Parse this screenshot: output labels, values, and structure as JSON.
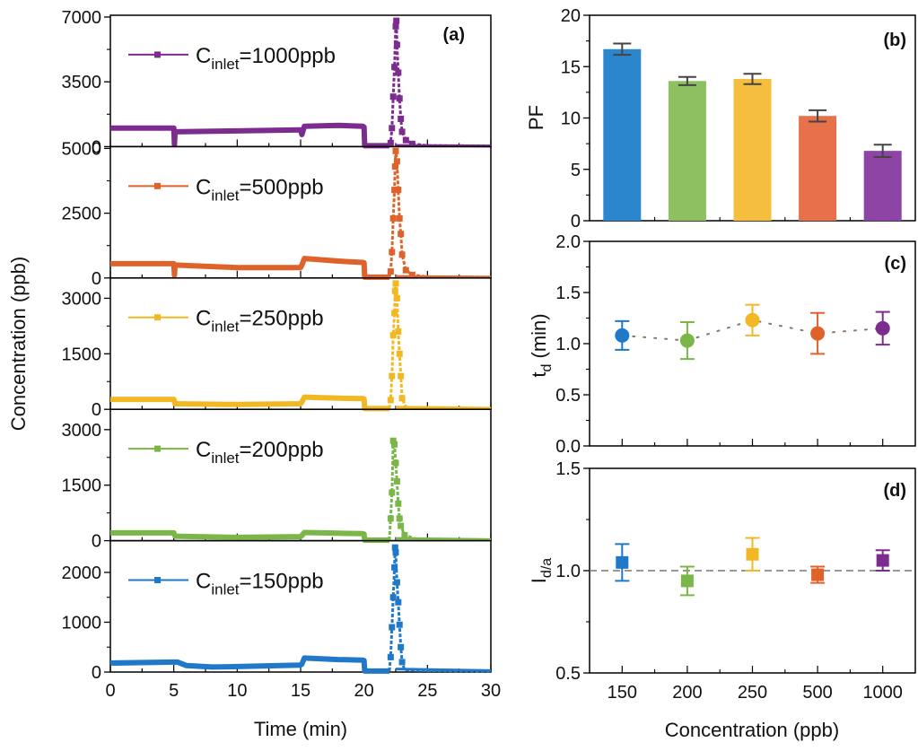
{
  "chart_data": [
    {
      "id": "a",
      "panel_tag": "(a)",
      "type": "line",
      "title": "",
      "xlabel": "Time (min)",
      "ylabel": "Concentration (ppb)",
      "xlim": [
        0,
        30
      ],
      "xticks": [
        0,
        5,
        10,
        15,
        20,
        25,
        30
      ],
      "grid": false,
      "subpanels": [
        {
          "name": "C_inlet=1000ppb",
          "legend": {
            "main": "C",
            "sub": "inlet",
            "rest": "=1000ppb"
          },
          "color": "#7B2C8E",
          "ylim": [
            0,
            7000
          ],
          "yticks": [
            0,
            3500,
            7000
          ],
          "baseline": [
            [
              0,
              1000
            ],
            [
              5,
              1000
            ],
            [
              5.05,
              100
            ],
            [
              5.1,
              800
            ],
            [
              10,
              850
            ],
            [
              15,
              900
            ],
            [
              15.1,
              650
            ],
            [
              15.3,
              1100
            ],
            [
              18,
              1150
            ],
            [
              19.9,
              1100
            ],
            [
              20,
              1050
            ],
            [
              20.05,
              50
            ],
            [
              22,
              50
            ]
          ],
          "peak": [
            [
              22,
              50
            ],
            [
              22.1,
              200
            ],
            [
              22.2,
              1000
            ],
            [
              22.3,
              2700
            ],
            [
              22.4,
              4300
            ],
            [
              22.5,
              6500
            ],
            [
              22.55,
              6800
            ],
            [
              22.6,
              5500
            ],
            [
              22.7,
              4000
            ],
            [
              22.8,
              2600
            ],
            [
              22.9,
              1500
            ],
            [
              23,
              800
            ],
            [
              23.3,
              350
            ],
            [
              23.8,
              150
            ],
            [
              25,
              60
            ],
            [
              30,
              40
            ]
          ]
        },
        {
          "name": "C_inlet=500ppb",
          "legend": {
            "main": "C",
            "sub": "inlet",
            "rest": "=500ppb"
          },
          "color": "#E0622B",
          "ylim": [
            0,
            5000
          ],
          "yticks": [
            0,
            2500,
            5000
          ],
          "baseline": [
            [
              0,
              550
            ],
            [
              5,
              550
            ],
            [
              5.05,
              100
            ],
            [
              5.1,
              500
            ],
            [
              10,
              400
            ],
            [
              15,
              400
            ],
            [
              15.1,
              500
            ],
            [
              15.3,
              750
            ],
            [
              18,
              650
            ],
            [
              19.9,
              600
            ],
            [
              20,
              580
            ],
            [
              20.05,
              30
            ],
            [
              22,
              30
            ]
          ],
          "peak": [
            [
              22,
              30
            ],
            [
              22.1,
              250
            ],
            [
              22.2,
              1000
            ],
            [
              22.3,
              2300
            ],
            [
              22.4,
              3400
            ],
            [
              22.45,
              4300
            ],
            [
              22.5,
              4900
            ],
            [
              22.6,
              4500
            ],
            [
              22.7,
              3400
            ],
            [
              22.8,
              2300
            ],
            [
              22.9,
              1700
            ],
            [
              23,
              900
            ],
            [
              23.3,
              300
            ],
            [
              23.8,
              120
            ],
            [
              25,
              40
            ],
            [
              30,
              30
            ]
          ]
        },
        {
          "name": "C_inlet=250ppb",
          "legend": {
            "main": "C",
            "sub": "inlet",
            "rest": "=250ppb"
          },
          "color": "#F2B824",
          "ylim": [
            0,
            3500
          ],
          "yticks": [
            0,
            1500,
            3000
          ],
          "baseline": [
            [
              0,
              270
            ],
            [
              5,
              270
            ],
            [
              5.1,
              150
            ],
            [
              10,
              130
            ],
            [
              15,
              150
            ],
            [
              15.1,
              200
            ],
            [
              15.3,
              330
            ],
            [
              18,
              300
            ],
            [
              19.9,
              290
            ],
            [
              20,
              280
            ],
            [
              20.05,
              20
            ],
            [
              22,
              20
            ]
          ],
          "peak": [
            [
              22,
              20
            ],
            [
              22.1,
              250
            ],
            [
              22.2,
              900
            ],
            [
              22.3,
              2000
            ],
            [
              22.4,
              2600
            ],
            [
              22.45,
              3200
            ],
            [
              22.5,
              3400
            ],
            [
              22.6,
              3000
            ],
            [
              22.7,
              2100
            ],
            [
              22.8,
              1500
            ],
            [
              22.9,
              900
            ],
            [
              23,
              300
            ],
            [
              23.3,
              60
            ],
            [
              25,
              25
            ],
            [
              30,
              20
            ]
          ]
        },
        {
          "name": "C_inlet=200ppb",
          "legend": {
            "main": "C",
            "sub": "inlet",
            "rest": "=200ppb"
          },
          "color": "#7AB648",
          "ylim": [
            0,
            3500
          ],
          "yticks": [
            0,
            1500,
            3000
          ],
          "baseline": [
            [
              0,
              210
            ],
            [
              5,
              210
            ],
            [
              5.1,
              120
            ],
            [
              10,
              90
            ],
            [
              15,
              110
            ],
            [
              15.1,
              140
            ],
            [
              15.3,
              220
            ],
            [
              18,
              200
            ],
            [
              19.9,
              190
            ],
            [
              20,
              180
            ],
            [
              20.05,
              15
            ],
            [
              22,
              15
            ]
          ],
          "peak": [
            [
              22,
              15
            ],
            [
              22.1,
              600
            ],
            [
              22.2,
              1300
            ],
            [
              22.3,
              2700
            ],
            [
              22.4,
              2600
            ],
            [
              22.5,
              2100
            ],
            [
              22.6,
              1600
            ],
            [
              22.7,
              1000
            ],
            [
              22.8,
              600
            ],
            [
              22.9,
              400
            ],
            [
              23.2,
              150
            ],
            [
              24,
              60
            ],
            [
              25,
              30
            ],
            [
              30,
              20
            ]
          ]
        },
        {
          "name": "C_inlet=150ppb",
          "legend": {
            "main": "C",
            "sub": "inlet",
            "rest": "=150ppb"
          },
          "color": "#1F78C8",
          "ylim": [
            0,
            2600
          ],
          "yticks": [
            0,
            1000,
            2000
          ],
          "baseline": [
            [
              0,
              180
            ],
            [
              5,
              200
            ],
            [
              5.3,
              200
            ],
            [
              6,
              130
            ],
            [
              8,
              100
            ],
            [
              10,
              110
            ],
            [
              15,
              140
            ],
            [
              15.1,
              160
            ],
            [
              15.3,
              280
            ],
            [
              18,
              250
            ],
            [
              19.9,
              240
            ],
            [
              20,
              230
            ],
            [
              20.05,
              20
            ],
            [
              22,
              20
            ]
          ],
          "peak": [
            [
              22,
              20
            ],
            [
              22.1,
              300
            ],
            [
              22.2,
              900
            ],
            [
              22.3,
              1500
            ],
            [
              22.4,
              2100
            ],
            [
              22.45,
              2500
            ],
            [
              22.5,
              2400
            ],
            [
              22.6,
              1800
            ],
            [
              22.7,
              1400
            ],
            [
              22.8,
              950
            ],
            [
              22.9,
              500
            ],
            [
              23,
              200
            ],
            [
              23.2,
              40
            ],
            [
              25,
              25
            ],
            [
              30,
              20
            ]
          ]
        }
      ]
    },
    {
      "id": "b",
      "panel_tag": "(b)",
      "type": "bar",
      "ylabel": "PF",
      "categories": [
        "150",
        "200",
        "250",
        "500",
        "1000"
      ],
      "values": [
        16.7,
        13.6,
        13.8,
        10.2,
        6.8
      ],
      "errors": [
        0.55,
        0.4,
        0.5,
        0.55,
        0.6
      ],
      "colors": [
        "#2C86CE",
        "#8DC060",
        "#F6BE3F",
        "#E6714B",
        "#8E44A4"
      ],
      "ylim": [
        0,
        20
      ],
      "yticks": [
        0,
        5,
        10,
        15,
        20
      ],
      "grid": false
    },
    {
      "id": "c",
      "panel_tag": "(c)",
      "type": "scatter",
      "ylabel": "t_d (min)",
      "ylabel_parts": {
        "main": "t",
        "sub": "d",
        "rest": " (min)"
      },
      "categories": [
        "150",
        "200",
        "250",
        "500",
        "1000"
      ],
      "values": [
        1.08,
        1.03,
        1.23,
        1.1,
        1.15
      ],
      "errors": [
        0.14,
        0.18,
        0.15,
        0.2,
        0.16
      ],
      "colors": [
        "#1F78C8",
        "#7AB648",
        "#F2B824",
        "#E0622B",
        "#7B2C8E"
      ],
      "connector": "dotted",
      "ylim": [
        0,
        2.0
      ],
      "yticks": [
        "0.0",
        "0.5",
        "1.0",
        "1.5",
        "2.0"
      ],
      "grid": false
    },
    {
      "id": "d",
      "panel_tag": "(d)",
      "type": "scatter",
      "ylabel": "I_d/a",
      "ylabel_parts": {
        "main": "I",
        "sub": "d/a",
        "rest": ""
      },
      "xlabel": "Concentration (ppb)",
      "categories": [
        "150",
        "200",
        "250",
        "500",
        "1000"
      ],
      "values": [
        1.04,
        0.95,
        1.08,
        0.98,
        1.05
      ],
      "errors": [
        0.09,
        0.07,
        0.08,
        0.04,
        0.05
      ],
      "colors": [
        "#1F78C8",
        "#7AB648",
        "#F2B824",
        "#E0622B",
        "#7B2C8E"
      ],
      "reference_line": 1.0,
      "ylim": [
        0.5,
        1.5
      ],
      "yticks": [
        "0.5",
        "1.0",
        "1.5"
      ],
      "grid": false
    }
  ]
}
